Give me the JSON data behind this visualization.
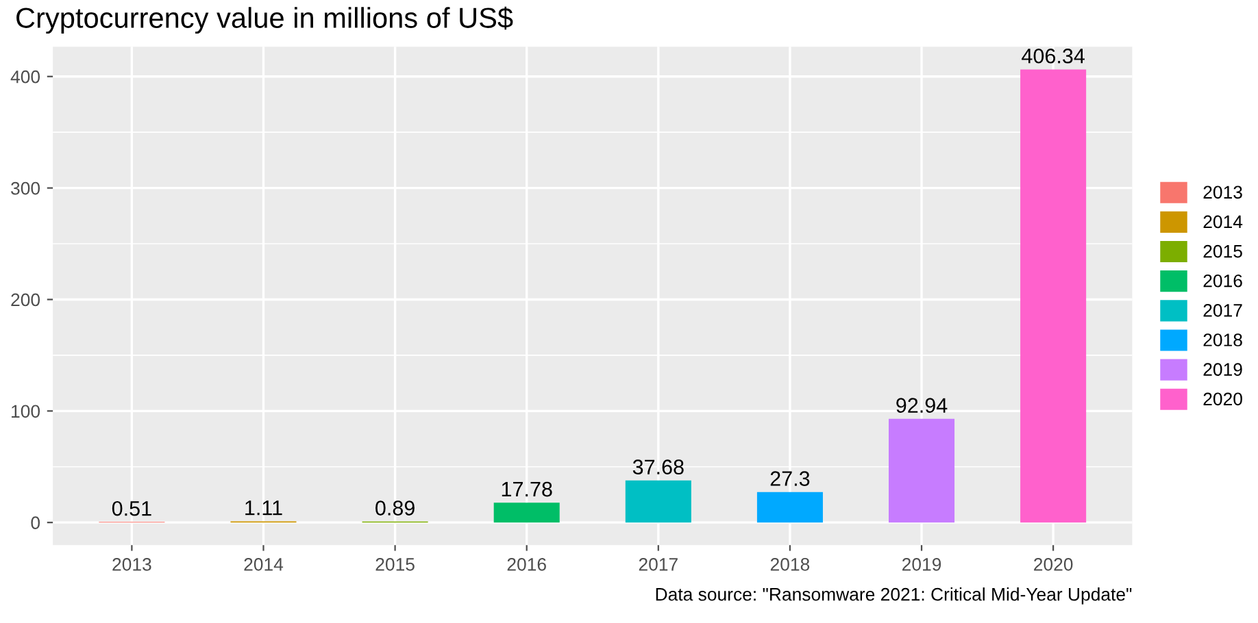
{
  "chart_data": {
    "type": "bar",
    "title": "Cryptocurrency value in millions of US$",
    "categories": [
      "2013",
      "2014",
      "2015",
      "2016",
      "2017",
      "2018",
      "2019",
      "2020"
    ],
    "series": [
      {
        "name": "2013",
        "color": "#f8766d",
        "values": [
          0.51,
          null,
          null,
          null,
          null,
          null,
          null,
          null
        ]
      },
      {
        "name": "2014",
        "color": "#cd9600",
        "values": [
          null,
          1.11,
          null,
          null,
          null,
          null,
          null,
          null
        ]
      },
      {
        "name": "2015",
        "color": "#7cae00",
        "values": [
          null,
          null,
          0.89,
          null,
          null,
          null,
          null,
          null
        ]
      },
      {
        "name": "2016",
        "color": "#00be67",
        "values": [
          null,
          null,
          null,
          17.78,
          null,
          null,
          null,
          null
        ]
      },
      {
        "name": "2017",
        "color": "#00bfc4",
        "values": [
          null,
          null,
          null,
          null,
          37.68,
          null,
          null,
          null
        ]
      },
      {
        "name": "2018",
        "color": "#00a9ff",
        "values": [
          null,
          null,
          null,
          null,
          null,
          27.3,
          null,
          null
        ]
      },
      {
        "name": "2019",
        "color": "#c77cff",
        "values": [
          null,
          null,
          null,
          null,
          null,
          null,
          92.94,
          null
        ]
      },
      {
        "name": "2020",
        "color": "#ff61cc",
        "values": [
          null,
          null,
          null,
          null,
          null,
          null,
          null,
          406.34
        ]
      }
    ],
    "stacked": true,
    "data_labels": true,
    "ylim": [
      -20.3,
      426.7
    ],
    "yticks": [
      0,
      100,
      200,
      300,
      400
    ],
    "grid": true,
    "legend": "right",
    "annotations": [
      "Data source: \"Ransomware 2021: Critical Mid-Year Update\""
    ]
  }
}
